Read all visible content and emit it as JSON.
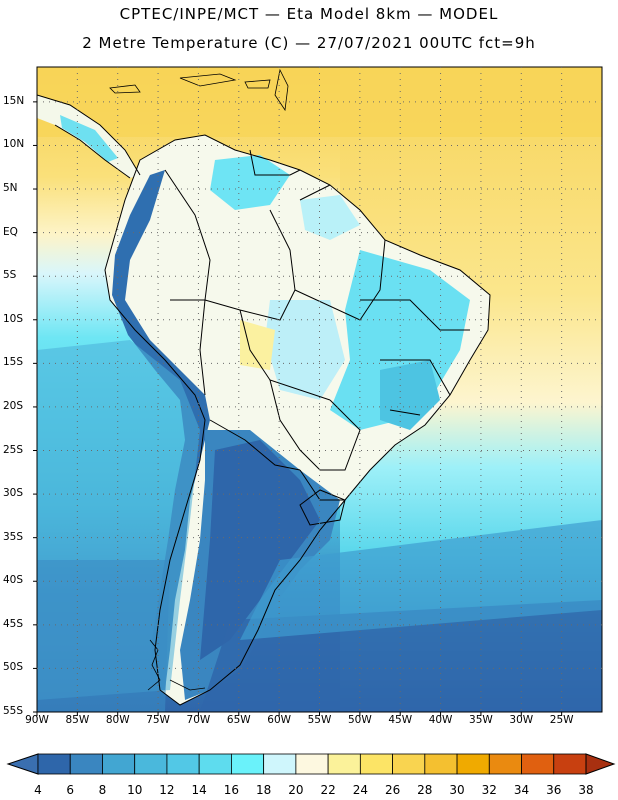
{
  "title_line1": "CPTEC/INPE/MCT —  Eta Model 8km — MODEL",
  "title_line2": "2 Metre Temperature (C) — 27/07/2021 00UTC fct=9h",
  "lat_labels": [
    "15N",
    "10N",
    "5N",
    "EQ",
    "5S",
    "10S",
    "15S",
    "20S",
    "25S",
    "30S",
    "35S",
    "40S",
    "45S",
    "50S",
    "55S"
  ],
  "lon_labels": [
    "90W",
    "85W",
    "80W",
    "75W",
    "70W",
    "65W",
    "60W",
    "55W",
    "50W",
    "45W",
    "40W",
    "35W",
    "30W",
    "25W"
  ],
  "colorbar": {
    "labels": [
      "4",
      "6",
      "8",
      "10",
      "12",
      "14",
      "16",
      "18",
      "20",
      "22",
      "24",
      "26",
      "28",
      "30",
      "32",
      "34",
      "36",
      "38"
    ],
    "colors": [
      "#3a6fb0",
      "#2e66aa",
      "#3a86c0",
      "#42a6d2",
      "#4ab8dc",
      "#52c8e6",
      "#5edcee",
      "#6af2fa",
      "#cff6fc",
      "#fdf8e0",
      "#fbf29a",
      "#fce466",
      "#f9d450",
      "#f4c030",
      "#f0aa00",
      "#ea8a10",
      "#e06010",
      "#c84010",
      "#a83010"
    ]
  },
  "chart_data": {
    "type": "map",
    "variable": "2 Metre Temperature (C)",
    "lon_range": [
      -90,
      -20
    ],
    "lat_range": [
      -55,
      19
    ],
    "grid": true
  }
}
